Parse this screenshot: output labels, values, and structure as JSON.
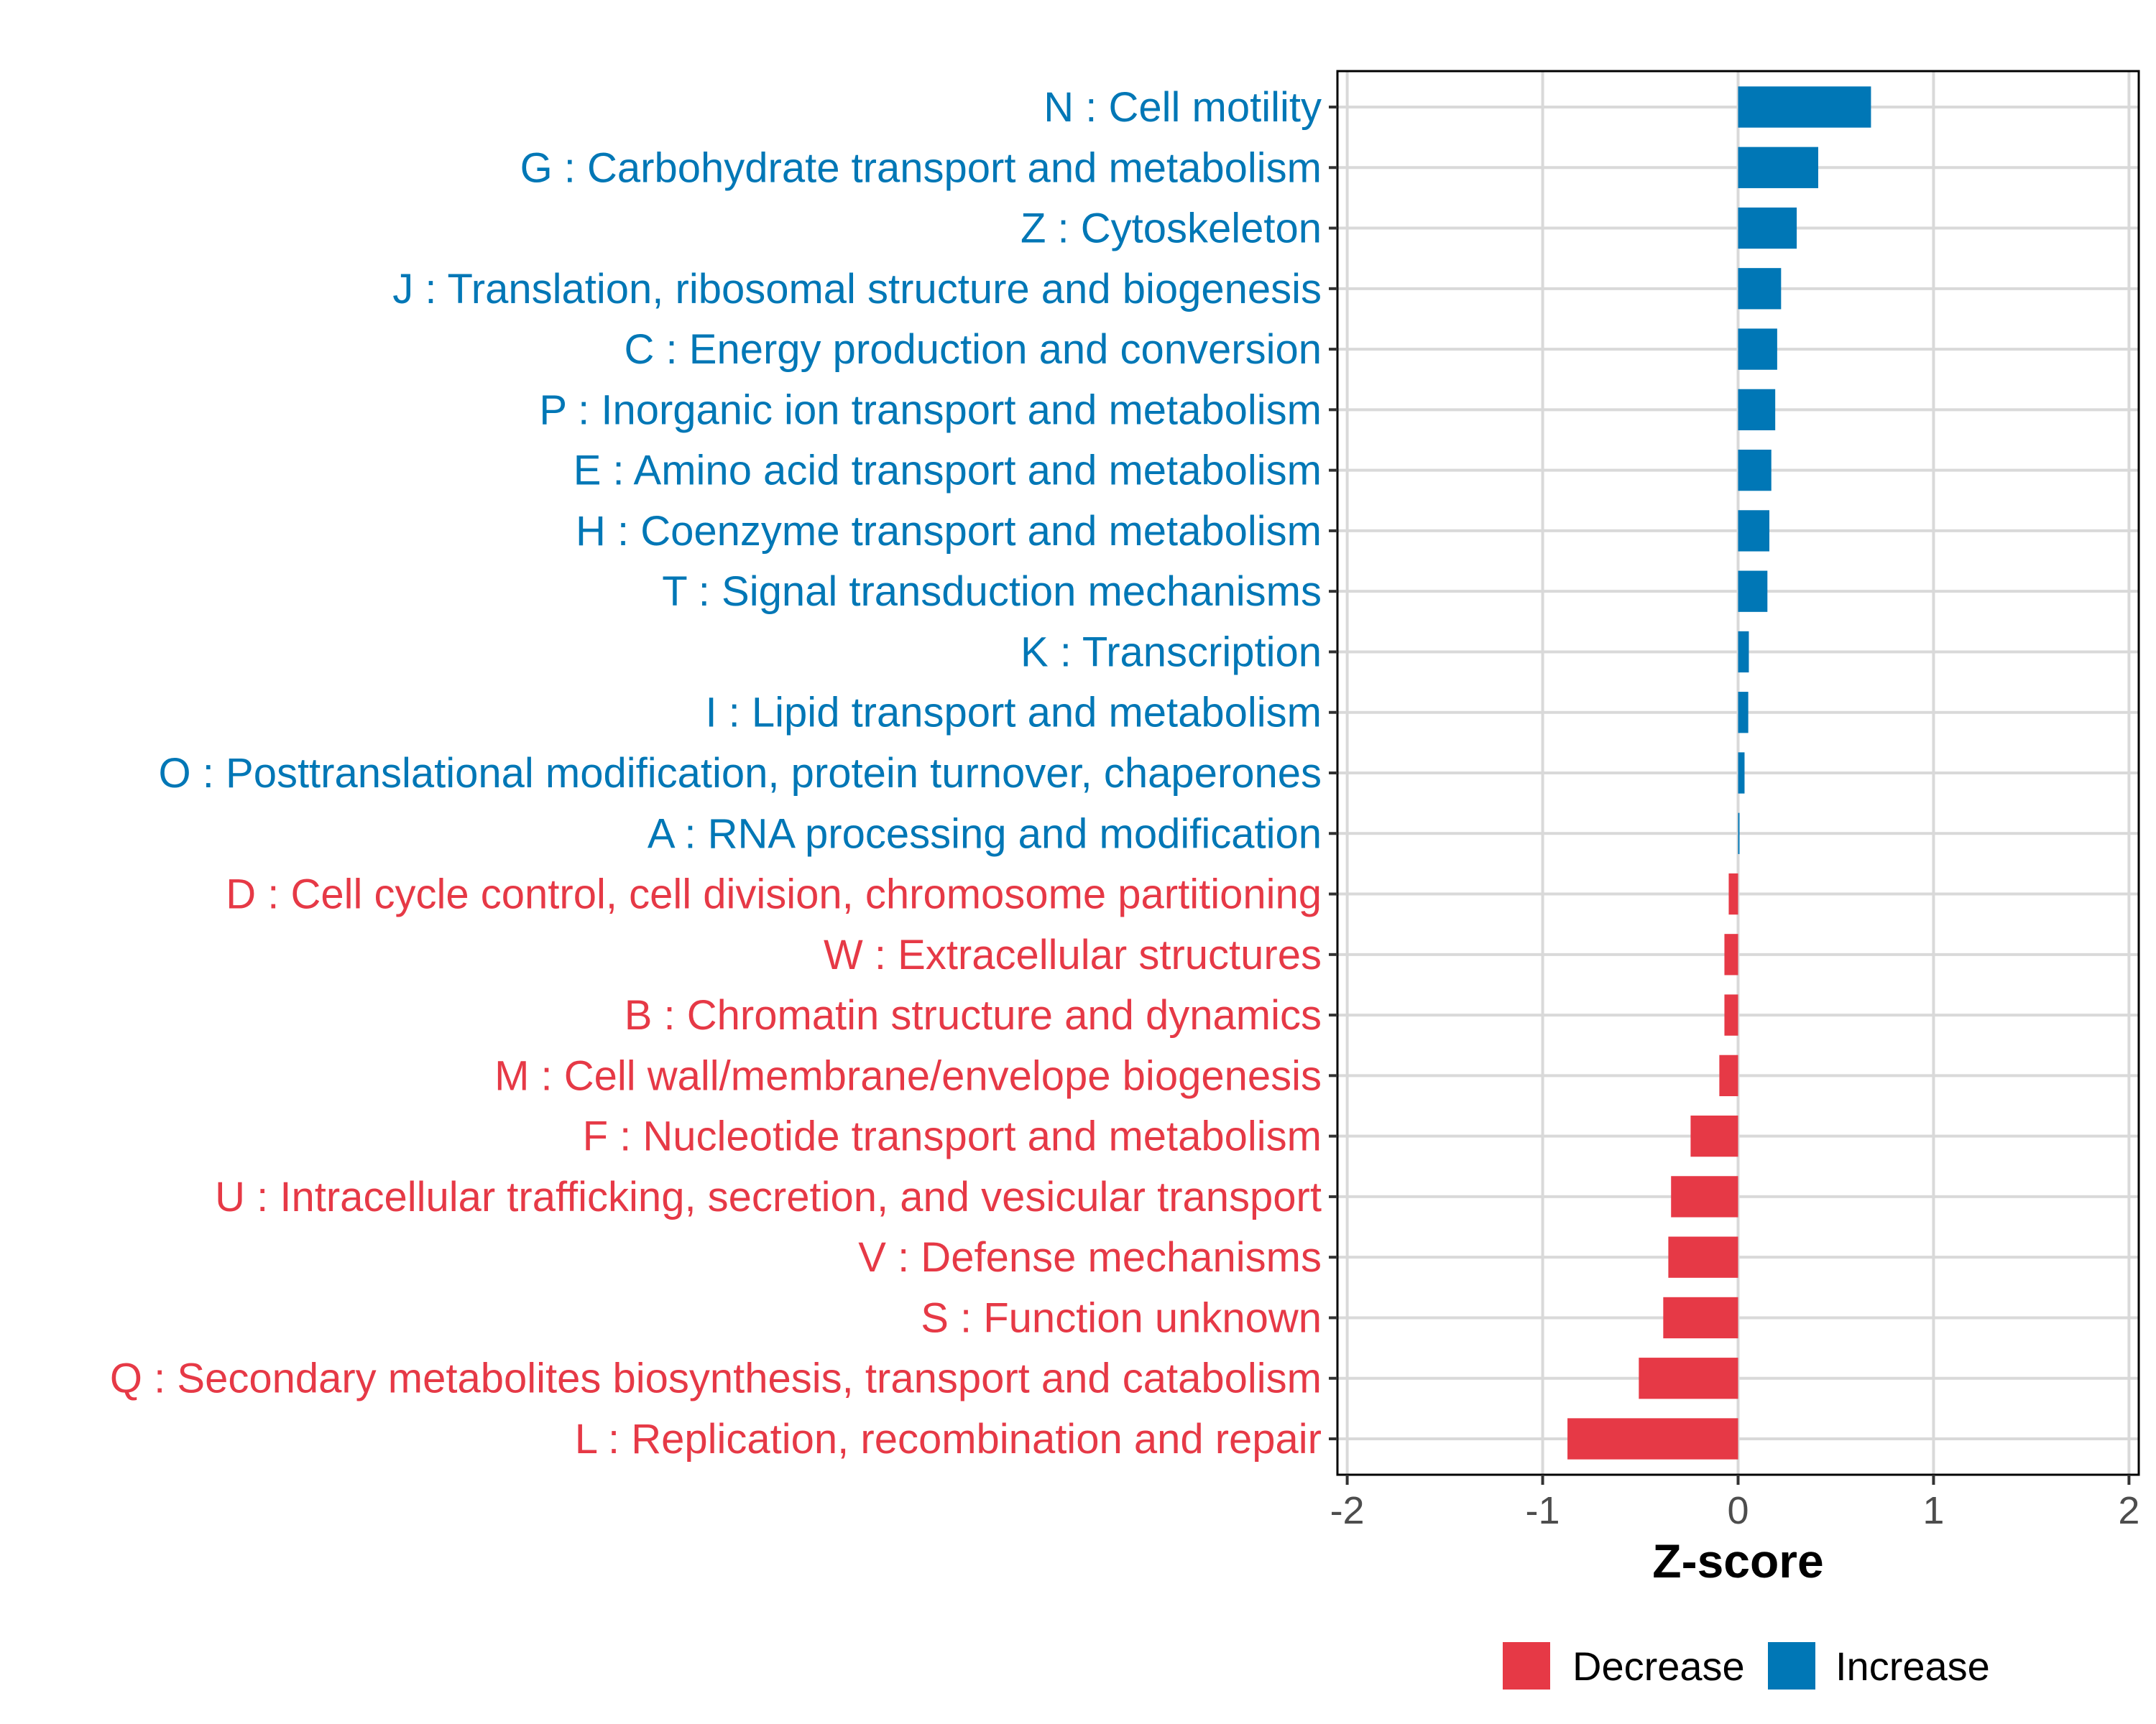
{
  "chart_data": {
    "type": "bar",
    "orientation": "horizontal",
    "title": "",
    "xlabel": "Z-score",
    "ylabel": "",
    "xlim": [
      -2,
      2
    ],
    "x_ticks": [
      -2,
      -1,
      0,
      1,
      2
    ],
    "x_tick_labels": [
      "-2",
      "-1",
      "0",
      "1",
      "2"
    ],
    "grid": true,
    "legend_position": "bottom",
    "colors": {
      "Decrease": "#E63946",
      "Increase": "#0077B6"
    },
    "legend": [
      {
        "name": "Decrease",
        "color": "#E63946"
      },
      {
        "name": "Increase",
        "color": "#0077B6"
      }
    ],
    "categories": [
      "N : Cell motility",
      "G : Carbohydrate transport and metabolism",
      "Z : Cytoskeleton",
      "J : Translation, ribosomal structure and biogenesis",
      "C : Energy production and conversion",
      "P : Inorganic ion transport and metabolism",
      "E : Amino acid transport and metabolism",
      "H : Coenzyme transport and metabolism",
      "T : Signal transduction mechanisms",
      "K : Transcription",
      "I : Lipid transport and metabolism",
      "O : Posttranslational modification, protein turnover, chaperones",
      "A : RNA processing and modification",
      "D : Cell cycle control, cell division, chromosome partitioning",
      "W : Extracellular structures",
      "B : Chromatin structure and dynamics",
      "M : Cell wall/membrane/envelope biogenesis",
      "F : Nucleotide transport and metabolism",
      "U : Intracellular trafficking, secretion, and vesicular transport",
      "V : Defense mechanisms",
      "S : Function unknown",
      "Q : Secondary metabolites biosynthesis, transport and catabolism",
      "L : Replication, recombination and repair"
    ],
    "values": [
      0.68,
      0.41,
      0.3,
      0.22,
      0.2,
      0.19,
      0.17,
      0.16,
      0.15,
      0.055,
      0.052,
      0.033,
      0.007,
      -0.048,
      -0.07,
      -0.07,
      -0.096,
      -0.243,
      -0.343,
      -0.357,
      -0.383,
      -0.508,
      -0.873
    ],
    "groups": [
      "Increase",
      "Increase",
      "Increase",
      "Increase",
      "Increase",
      "Increase",
      "Increase",
      "Increase",
      "Increase",
      "Increase",
      "Increase",
      "Increase",
      "Increase",
      "Decrease",
      "Decrease",
      "Decrease",
      "Decrease",
      "Decrease",
      "Decrease",
      "Decrease",
      "Decrease",
      "Decrease",
      "Decrease"
    ]
  }
}
